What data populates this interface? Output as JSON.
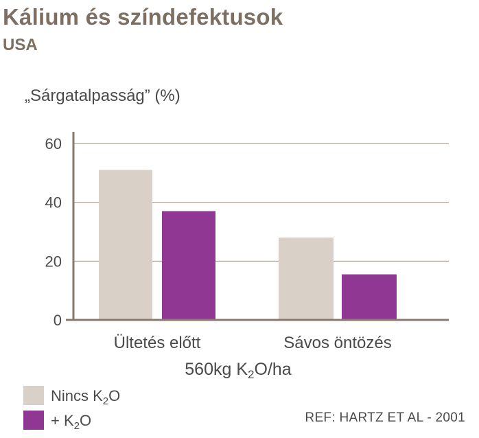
{
  "title": "Kálium és színdefektusok",
  "subtitle": "USA",
  "ylabel": "„Sárgatalpasság” (%)",
  "xlabel": {
    "pre": "560kg K",
    "sub": "2",
    "post": "O/ha"
  },
  "reference": "REF: HARTZ ET AL - 2001",
  "colors": {
    "nincs": "#d9d0c7",
    "k2o": "#8f3793",
    "axis": "#8a7a6c",
    "grid": "#9a8c80"
  },
  "chart_data": {
    "type": "bar",
    "categories": [
      "Ültetés előtt",
      "Sávos öntözés"
    ],
    "series": [
      {
        "name": "Nincs K₂O",
        "values": [
          51,
          28
        ],
        "color": "#d9d0c7"
      },
      {
        "name": "+ K₂O",
        "values": [
          37,
          15.5
        ],
        "color": "#8f3793"
      }
    ],
    "yticks": [
      "0",
      "20",
      "40",
      "60"
    ],
    "ylim": [
      0,
      60
    ],
    "grid": true,
    "legend_position": "bottom-left"
  },
  "legend": [
    {
      "pre": "Nincs K",
      "sub": "2",
      "post": "O"
    },
    {
      "pre": "+ K",
      "sub": "2",
      "post": "O"
    }
  ]
}
